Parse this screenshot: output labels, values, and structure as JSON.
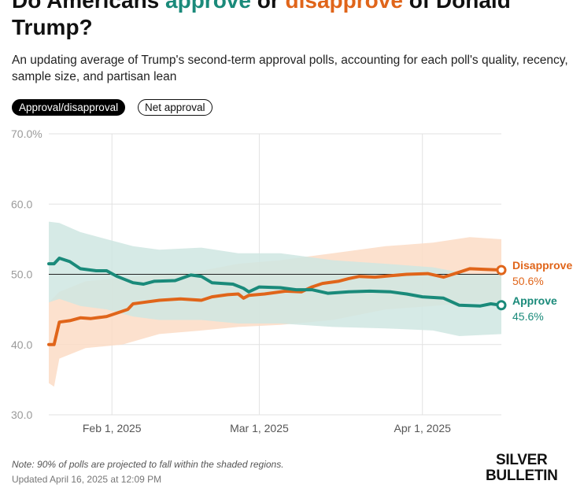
{
  "header": {
    "title_prefix": "Do Americans ",
    "title_approve": "approve",
    "title_or": " or ",
    "title_disapprove": "disapprove",
    "title_suffix": " of Donald Trump?",
    "subtitle": "An updating average of Trump's second-term approval polls, accounting for each poll's quality, recency, sample size, and partisan lean"
  },
  "toggles": {
    "selected": "Approval/disapproval",
    "other": "Net approval"
  },
  "footer": {
    "note": "Note: 90% of polls are projected to fall within the shaded regions.",
    "updated": "Updated April 16, 2025 at 12:09 PM",
    "brand_line1": "SILVER",
    "brand_line2": "BULLETIN"
  },
  "colors": {
    "approve": "#1a8a7a",
    "disapprove": "#e0651a",
    "approve_band": "#cfe6e2",
    "disapprove_band": "#fbdcc6"
  },
  "chart_data": {
    "type": "line",
    "ylim": [
      30,
      70
    ],
    "yticks": [
      30,
      40,
      50,
      60,
      70
    ],
    "ytick_labels": [
      "30.0",
      "40.0",
      "50.0",
      "60.0",
      "70.0%"
    ],
    "xlim": [
      "2025-01-20",
      "2025-04-16"
    ],
    "xticks": [
      "2025-02-01",
      "2025-03-01",
      "2025-04-01"
    ],
    "xtick_labels": [
      "Feb 1, 2025",
      "Mar 1, 2025",
      "Apr 1, 2025"
    ],
    "reference_line": 50,
    "grid": true,
    "shaded_band_meaning": "90% of polls projected range",
    "series": [
      {
        "name": "Disapprove",
        "final_label": "50.6%",
        "color": "#e0651a",
        "points": [
          [
            "2025-01-20",
            40.0
          ],
          [
            "2025-01-21",
            40.0
          ],
          [
            "2025-01-22",
            43.2
          ],
          [
            "2025-01-24",
            43.4
          ],
          [
            "2025-01-26",
            43.8
          ],
          [
            "2025-01-28",
            43.7
          ],
          [
            "2025-01-31",
            44.0
          ],
          [
            "2025-02-02",
            44.5
          ],
          [
            "2025-02-04",
            45.0
          ],
          [
            "2025-02-05",
            45.8
          ],
          [
            "2025-02-07",
            46.0
          ],
          [
            "2025-02-10",
            46.3
          ],
          [
            "2025-02-14",
            46.5
          ],
          [
            "2025-02-18",
            46.3
          ],
          [
            "2025-02-20",
            46.8
          ],
          [
            "2025-02-23",
            47.1
          ],
          [
            "2025-02-25",
            47.2
          ],
          [
            "2025-02-26",
            46.6
          ],
          [
            "2025-02-27",
            47.0
          ],
          [
            "2025-03-02",
            47.2
          ],
          [
            "2025-03-06",
            47.6
          ],
          [
            "2025-03-09",
            47.5
          ],
          [
            "2025-03-11",
            48.2
          ],
          [
            "2025-03-13",
            48.7
          ],
          [
            "2025-03-16",
            49.0
          ],
          [
            "2025-03-18",
            49.4
          ],
          [
            "2025-03-20",
            49.7
          ],
          [
            "2025-03-23",
            49.6
          ],
          [
            "2025-03-26",
            49.8
          ],
          [
            "2025-03-29",
            50.0
          ],
          [
            "2025-04-02",
            50.1
          ],
          [
            "2025-04-05",
            49.6
          ],
          [
            "2025-04-08",
            50.3
          ],
          [
            "2025-04-10",
            50.8
          ],
          [
            "2025-04-13",
            50.7
          ],
          [
            "2025-04-16",
            50.6
          ]
        ],
        "band_upper": [
          [
            "2025-01-20",
            46.0
          ],
          [
            "2025-01-22",
            47.5
          ],
          [
            "2025-01-27",
            49.0
          ],
          [
            "2025-02-03",
            49.5
          ],
          [
            "2025-02-10",
            50.0
          ],
          [
            "2025-02-18",
            50.5
          ],
          [
            "2025-02-25",
            51.5
          ],
          [
            "2025-03-05",
            52.0
          ],
          [
            "2025-03-15",
            53.0
          ],
          [
            "2025-03-25",
            54.0
          ],
          [
            "2025-04-03",
            54.5
          ],
          [
            "2025-04-10",
            55.3
          ],
          [
            "2025-04-16",
            55.0
          ]
        ],
        "band_lower": [
          [
            "2025-01-20",
            34.5
          ],
          [
            "2025-01-21",
            34.0
          ],
          [
            "2025-01-22",
            38.0
          ],
          [
            "2025-01-27",
            39.5
          ],
          [
            "2025-02-03",
            40.0
          ],
          [
            "2025-02-10",
            41.5
          ],
          [
            "2025-02-18",
            42.0
          ],
          [
            "2025-02-25",
            42.5
          ],
          [
            "2025-03-05",
            42.8
          ],
          [
            "2025-03-15",
            43.5
          ],
          [
            "2025-03-25",
            45.0
          ],
          [
            "2025-04-03",
            45.5
          ],
          [
            "2025-04-10",
            46.0
          ],
          [
            "2025-04-16",
            46.0
          ]
        ]
      },
      {
        "name": "Approve",
        "final_label": "45.6%",
        "color": "#1a8a7a",
        "points": [
          [
            "2025-01-20",
            51.5
          ],
          [
            "2025-01-21",
            51.5
          ],
          [
            "2025-01-22",
            52.3
          ],
          [
            "2025-01-24",
            51.8
          ],
          [
            "2025-01-26",
            50.8
          ],
          [
            "2025-01-29",
            50.5
          ],
          [
            "2025-01-31",
            50.5
          ],
          [
            "2025-02-02",
            49.7
          ],
          [
            "2025-02-05",
            48.8
          ],
          [
            "2025-02-07",
            48.6
          ],
          [
            "2025-02-09",
            49.0
          ],
          [
            "2025-02-13",
            49.1
          ],
          [
            "2025-02-16",
            49.9
          ],
          [
            "2025-02-18",
            49.7
          ],
          [
            "2025-02-20",
            48.8
          ],
          [
            "2025-02-24",
            48.6
          ],
          [
            "2025-02-26",
            48.0
          ],
          [
            "2025-02-27",
            47.5
          ],
          [
            "2025-03-01",
            48.2
          ],
          [
            "2025-03-05",
            48.1
          ],
          [
            "2025-03-08",
            47.8
          ],
          [
            "2025-03-11",
            47.8
          ],
          [
            "2025-03-14",
            47.3
          ],
          [
            "2025-03-18",
            47.5
          ],
          [
            "2025-03-22",
            47.6
          ],
          [
            "2025-03-26",
            47.5
          ],
          [
            "2025-03-29",
            47.2
          ],
          [
            "2025-04-01",
            46.8
          ],
          [
            "2025-04-05",
            46.6
          ],
          [
            "2025-04-08",
            45.6
          ],
          [
            "2025-04-12",
            45.5
          ],
          [
            "2025-04-14",
            45.8
          ],
          [
            "2025-04-16",
            45.6
          ]
        ],
        "band_upper": [
          [
            "2025-01-20",
            57.5
          ],
          [
            "2025-01-22",
            57.3
          ],
          [
            "2025-01-26",
            56.0
          ],
          [
            "2025-01-31",
            55.0
          ],
          [
            "2025-02-05",
            54.0
          ],
          [
            "2025-02-10",
            53.5
          ],
          [
            "2025-02-18",
            53.8
          ],
          [
            "2025-02-25",
            53.0
          ],
          [
            "2025-03-05",
            53.0
          ],
          [
            "2025-03-15",
            52.0
          ],
          [
            "2025-03-25",
            51.5
          ],
          [
            "2025-04-03",
            51.0
          ],
          [
            "2025-04-10",
            50.0
          ],
          [
            "2025-04-16",
            50.0
          ]
        ],
        "band_lower": [
          [
            "2025-01-20",
            46.0
          ],
          [
            "2025-01-22",
            46.5
          ],
          [
            "2025-01-26",
            45.5
          ],
          [
            "2025-01-31",
            45.0
          ],
          [
            "2025-02-05",
            44.0
          ],
          [
            "2025-02-10",
            43.5
          ],
          [
            "2025-02-18",
            43.5
          ],
          [
            "2025-02-25",
            43.0
          ],
          [
            "2025-03-05",
            43.0
          ],
          [
            "2025-03-15",
            42.5
          ],
          [
            "2025-03-25",
            42.3
          ],
          [
            "2025-04-03",
            42.0
          ],
          [
            "2025-04-08",
            41.2
          ],
          [
            "2025-04-16",
            41.5
          ]
        ]
      }
    ]
  }
}
